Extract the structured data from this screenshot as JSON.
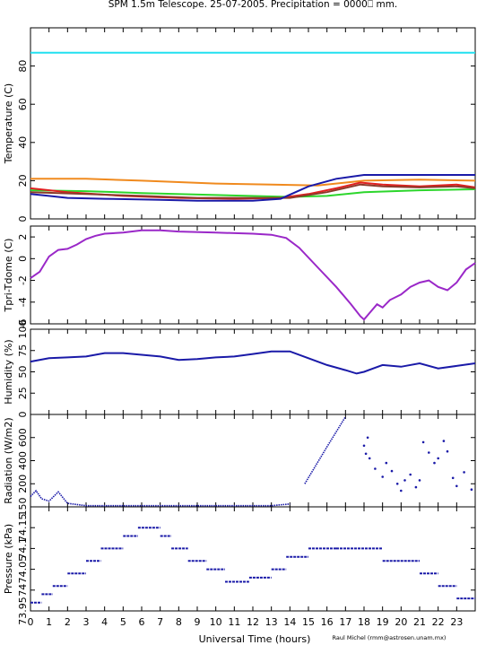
{
  "title": "SPM 1.5m Telescope. 25-07-2005. Precipitation = 0000⎕ mm.",
  "x_axis": {
    "label": "Universal Time (hours)",
    "ticks": [
      "0",
      "1",
      "2",
      "3",
      "4",
      "5",
      "6",
      "7",
      "8",
      "9",
      "10",
      "11",
      "12",
      "13",
      "14",
      "15",
      "16",
      "17",
      "18",
      "19",
      "20",
      "21",
      "22",
      "23"
    ],
    "range": [
      0,
      24
    ]
  },
  "credit": "Raul Michel (rmm@astrosen.unam.mx)",
  "colors": {
    "cyan": "#22e0f0",
    "orange": "#f08a1e",
    "green": "#2cd62c",
    "red": "#e02020",
    "brown": "#8b3a2a",
    "navy": "#1a1aa8",
    "purple": "#9a28c8",
    "dots": "#1a1aa8"
  },
  "chart_data": [
    {
      "type": "line",
      "panel": "temperature",
      "ylabel": "Temperature (C)",
      "ylim": [
        0,
        100
      ],
      "yticks": [
        "0",
        "20",
        "40",
        "60",
        "80"
      ],
      "series": [
        {
          "color": "cyan",
          "points": [
            [
              0,
              87
            ],
            [
              24,
              87
            ]
          ]
        },
        {
          "color": "orange",
          "points": [
            [
              0,
              21
            ],
            [
              3,
              21
            ],
            [
              6,
              20
            ],
            [
              10,
              18.5
            ],
            [
              13,
              18
            ],
            [
              15.5,
              17.5
            ],
            [
              18,
              20
            ],
            [
              21,
              20.5
            ],
            [
              24,
              20
            ]
          ]
        },
        {
          "color": "green",
          "points": [
            [
              0,
              15
            ],
            [
              3,
              14.5
            ],
            [
              6,
              13.5
            ],
            [
              10,
              12.5
            ],
            [
              14,
              11.5
            ],
            [
              16,
              12
            ],
            [
              18,
              14
            ],
            [
              21,
              15
            ],
            [
              24,
              15.5
            ]
          ]
        },
        {
          "color": "red",
          "points": [
            [
              0,
              16
            ],
            [
              2,
              14
            ],
            [
              5,
              12
            ],
            [
              8,
              11
            ],
            [
              11,
              10.5
            ],
            [
              13.5,
              11
            ],
            [
              15,
              13
            ],
            [
              16.5,
              16
            ],
            [
              17.8,
              19
            ],
            [
              19,
              18
            ],
            [
              21,
              17
            ],
            [
              23,
              18
            ],
            [
              24,
              16.5
            ]
          ]
        },
        {
          "color": "brown",
          "points": [
            [
              0,
              14
            ],
            [
              3,
              13
            ],
            [
              6,
              12
            ],
            [
              9,
              11
            ],
            [
              12,
              11
            ],
            [
              14,
              11
            ],
            [
              16,
              14
            ],
            [
              17.8,
              18
            ],
            [
              19,
              17
            ],
            [
              21,
              16.5
            ],
            [
              23,
              17
            ],
            [
              24,
              16
            ]
          ]
        },
        {
          "color": "navy",
          "points": [
            [
              0,
              13
            ],
            [
              1,
              12
            ],
            [
              2,
              11
            ],
            [
              4,
              10.5
            ],
            [
              7,
              10
            ],
            [
              9,
              9.5
            ],
            [
              12,
              9.5
            ],
            [
              13.5,
              10.5
            ],
            [
              15,
              17
            ],
            [
              16.5,
              21
            ],
            [
              18,
              23
            ],
            [
              19,
              23
            ],
            [
              24,
              23
            ]
          ]
        }
      ]
    },
    {
      "type": "line",
      "panel": "tpri-tdome",
      "ylabel": "Tpri-Tdome (C)",
      "ylim": [
        -6,
        3
      ],
      "yticks": [
        "-6",
        "-4",
        "-2",
        "0",
        "2"
      ],
      "series": [
        {
          "color": "purple",
          "points": [
            [
              0,
              -1.8
            ],
            [
              0.5,
              -1.2
            ],
            [
              1,
              0.2
            ],
            [
              1.5,
              0.8
            ],
            [
              2,
              0.9
            ],
            [
              2.5,
              1.3
            ],
            [
              3,
              1.8
            ],
            [
              3.5,
              2.1
            ],
            [
              4,
              2.3
            ],
            [
              5,
              2.4
            ],
            [
              6,
              2.6
            ],
            [
              7,
              2.6
            ],
            [
              8,
              2.5
            ],
            [
              10,
              2.4
            ],
            [
              12,
              2.3
            ],
            [
              13,
              2.2
            ],
            [
              13.8,
              1.9
            ],
            [
              14.5,
              1.0
            ],
            [
              15.5,
              -0.8
            ],
            [
              16.5,
              -2.6
            ],
            [
              17.3,
              -4.2
            ],
            [
              17.8,
              -5.3
            ],
            [
              18,
              -5.6
            ],
            [
              18.3,
              -5.0
            ],
            [
              18.7,
              -4.2
            ],
            [
              19,
              -4.5
            ],
            [
              19.4,
              -3.8
            ],
            [
              20,
              -3.3
            ],
            [
              20.5,
              -2.6
            ],
            [
              21,
              -2.2
            ],
            [
              21.5,
              -2.0
            ],
            [
              22,
              -2.6
            ],
            [
              22.5,
              -2.9
            ],
            [
              23,
              -2.2
            ],
            [
              23.5,
              -1.0
            ],
            [
              24,
              -0.4
            ]
          ]
        }
      ]
    },
    {
      "type": "line",
      "panel": "humidity",
      "ylabel": "Humidity (%)",
      "ylim": [
        0,
        100
      ],
      "yticks": [
        "0",
        "25",
        "50",
        "75",
        "100"
      ],
      "series": [
        {
          "color": "navy",
          "points": [
            [
              0,
              62
            ],
            [
              1,
              66
            ],
            [
              2,
              67
            ],
            [
              3,
              68
            ],
            [
              4,
              72
            ],
            [
              5,
              72
            ],
            [
              6,
              70
            ],
            [
              7,
              68
            ],
            [
              8,
              64
            ],
            [
              9,
              65
            ],
            [
              10,
              67
            ],
            [
              11,
              68
            ],
            [
              12,
              71
            ],
            [
              13,
              74
            ],
            [
              14,
              74
            ],
            [
              15,
              66
            ],
            [
              16,
              58
            ],
            [
              17,
              52
            ],
            [
              17.6,
              48
            ],
            [
              18,
              50
            ],
            [
              18.5,
              54
            ],
            [
              19,
              58
            ],
            [
              20,
              56
            ],
            [
              21,
              60
            ],
            [
              22,
              54
            ],
            [
              23,
              57
            ],
            [
              24,
              60
            ]
          ]
        }
      ]
    },
    {
      "type": "scatter",
      "panel": "radiation",
      "ylabel": "Radiation (W/m2)",
      "ylim": [
        0,
        800
      ],
      "yticks": [
        "150",
        "200",
        "400",
        "600"
      ],
      "series": [
        {
          "color": "dots",
          "segments": [
            [
              [
                0,
                90
              ],
              [
                0.3,
                140
              ],
              [
                0.6,
                70
              ],
              [
                1,
                50
              ],
              [
                1.5,
                130
              ],
              [
                2,
                30
              ],
              [
                3,
                10
              ],
              [
                8,
                10
              ],
              [
                13,
                10
              ],
              [
                14,
                25
              ]
            ],
            [
              [
                14.8,
                200
              ],
              [
                16,
                520
              ],
              [
                17,
                780
              ]
            ]
          ],
          "scatter": [
            [
              18,
              530
            ],
            [
              18.1,
              460
            ],
            [
              18.2,
              600
            ],
            [
              18.3,
              420
            ],
            [
              18.6,
              330
            ],
            [
              19,
              260
            ],
            [
              19.2,
              380
            ],
            [
              19.5,
              310
            ],
            [
              19.8,
              200
            ],
            [
              20,
              140
            ],
            [
              20.2,
              230
            ],
            [
              20.5,
              280
            ],
            [
              20.8,
              170
            ],
            [
              21,
              230
            ],
            [
              21.2,
              560
            ],
            [
              21.5,
              470
            ],
            [
              21.8,
              380
            ],
            [
              22,
              420
            ],
            [
              22.3,
              570
            ],
            [
              22.5,
              480
            ],
            [
              22.8,
              250
            ],
            [
              23,
              180
            ],
            [
              23.4,
              300
            ],
            [
              23.8,
              150
            ]
          ]
        }
      ]
    },
    {
      "type": "scatter",
      "panel": "pressure",
      "ylabel": "Pressure (kPa)",
      "ylim": [
        73.95,
        74.2
      ],
      "yticks": [
        "73.95",
        "74",
        "74.05",
        "74.1",
        "74.15"
      ],
      "series": [
        {
          "color": "dots",
          "levels": [
            [
              0,
              0.6,
              73.97
            ],
            [
              0.6,
              1.2,
              73.99
            ],
            [
              1.2,
              2,
              74.01
            ],
            [
              2,
              3,
              74.04
            ],
            [
              3,
              3.8,
              74.07
            ],
            [
              3.8,
              5,
              74.1
            ],
            [
              5,
              5.8,
              74.13
            ],
            [
              5.8,
              7,
              74.15
            ],
            [
              7,
              7.6,
              74.13
            ],
            [
              7.6,
              8.5,
              74.1
            ],
            [
              8.5,
              9.5,
              74.07
            ],
            [
              9.5,
              10.5,
              74.05
            ],
            [
              10.5,
              11.8,
              74.02
            ],
            [
              11.8,
              13,
              74.03
            ],
            [
              13,
              13.8,
              74.05
            ],
            [
              13.8,
              15,
              74.08
            ],
            [
              15,
              16.5,
              74.1
            ],
            [
              16.5,
              19,
              74.1
            ],
            [
              19,
              21,
              74.07
            ],
            [
              21,
              22,
              74.04
            ],
            [
              22,
              23,
              74.01
            ],
            [
              23,
              24,
              73.98
            ]
          ]
        }
      ]
    }
  ]
}
